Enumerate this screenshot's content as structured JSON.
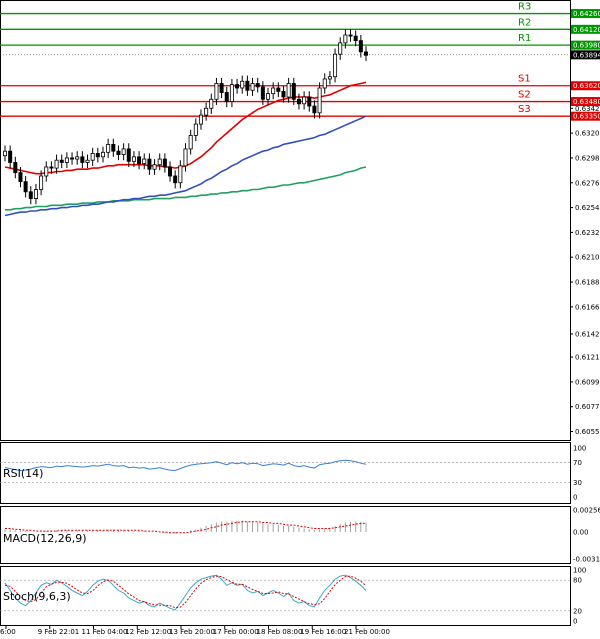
{
  "chart_data": [
    {
      "type": "candlestick",
      "panel": "price",
      "ylim": [
        0.6048,
        0.6438
      ],
      "y_ticks": [
        "0.64260",
        "0.64120",
        "0.63980",
        "0.63894",
        "0.63620",
        "0.63480",
        "0.63420",
        "0.63350",
        "0.63200",
        "0.62980",
        "0.62760",
        "0.62540",
        "0.62320",
        "0.62100",
        "0.61880",
        "0.61660",
        "0.61420",
        "0.61215",
        "0.60995",
        "0.60775",
        "0.60555"
      ],
      "x_ticks": [
        "6:00",
        "9 Feb 22:01",
        "11 Feb 04:00",
        "12 Feb 12:00",
        "13 Feb 20:00",
        "17 Feb 00:00",
        "18 Feb 08:00",
        "19 Feb 16:00",
        "21 Feb 00:00"
      ],
      "levels": [
        {
          "name": "R3",
          "value": 0.6426,
          "color": "#009600"
        },
        {
          "name": "R2",
          "value": 0.6412,
          "color": "#009600"
        },
        {
          "name": "R1",
          "value": 0.6398,
          "color": "#009600"
        },
        {
          "name": "S1",
          "value": 0.6362,
          "color": "#e00000"
        },
        {
          "name": "S2",
          "value": 0.6348,
          "color": "#e00000"
        },
        {
          "name": "S3",
          "value": 0.6335,
          "color": "#e00000"
        }
      ],
      "current_price": 0.63894,
      "closes": [
        0.6304,
        0.6294,
        0.6285,
        0.6277,
        0.6268,
        0.6262,
        0.627,
        0.6282,
        0.629,
        0.6289,
        0.6296,
        0.6294,
        0.6298,
        0.6297,
        0.6299,
        0.6294,
        0.6296,
        0.6302,
        0.6299,
        0.6303,
        0.631,
        0.6304,
        0.6301,
        0.6306,
        0.6295,
        0.6299,
        0.6293,
        0.6297,
        0.6288,
        0.6292,
        0.6297,
        0.629,
        0.6282,
        0.6276,
        0.6291,
        0.6306,
        0.6318,
        0.6328,
        0.6336,
        0.6342,
        0.635,
        0.6364,
        0.6356,
        0.6348,
        0.6363,
        0.636,
        0.6366,
        0.6358,
        0.6364,
        0.6361,
        0.635,
        0.6355,
        0.636,
        0.6357,
        0.6352,
        0.6364,
        0.635,
        0.6346,
        0.6352,
        0.6344,
        0.6338,
        0.636,
        0.6368,
        0.637,
        0.639,
        0.64,
        0.6407,
        0.6406,
        0.6402,
        0.6392,
        0.6389
      ],
      "ma_fast": {
        "color": "#e00000",
        "values": [
          0.629,
          0.6289,
          0.6288,
          0.6287,
          0.6286,
          0.6285,
          0.6284,
          0.6284,
          0.6285,
          0.6285,
          0.6286,
          0.6286,
          0.6287,
          0.6287,
          0.6288,
          0.6288,
          0.6288,
          0.6289,
          0.6289,
          0.629,
          0.6291,
          0.6291,
          0.6292,
          0.6292,
          0.6292,
          0.6292,
          0.6292,
          0.6292,
          0.6291,
          0.6291,
          0.6291,
          0.629,
          0.629,
          0.6289,
          0.629,
          0.6291,
          0.6293,
          0.6296,
          0.6299,
          0.6303,
          0.6307,
          0.6312,
          0.6316,
          0.632,
          0.6324,
          0.6328,
          0.6332,
          0.6335,
          0.6338,
          0.6341,
          0.6343,
          0.6345,
          0.6347,
          0.6349,
          0.635,
          0.6351,
          0.6352,
          0.6352,
          0.6352,
          0.6352,
          0.6351,
          0.6352,
          0.6353,
          0.6354,
          0.6356,
          0.6358,
          0.636,
          0.6362,
          0.6363,
          0.6364,
          0.6365
        ]
      },
      "ma_mid": {
        "color": "#3050c0",
        "values": [
          0.6247,
          0.6248,
          0.6249,
          0.625,
          0.625,
          0.6251,
          0.6251,
          0.6252,
          0.6252,
          0.6253,
          0.6253,
          0.6254,
          0.6254,
          0.6255,
          0.6255,
          0.6256,
          0.6256,
          0.6257,
          0.6257,
          0.6258,
          0.6259,
          0.6259,
          0.626,
          0.6261,
          0.6261,
          0.6262,
          0.6262,
          0.6263,
          0.6264,
          0.6264,
          0.6265,
          0.6265,
          0.6266,
          0.6267,
          0.6268,
          0.6269,
          0.6271,
          0.6273,
          0.6275,
          0.6278,
          0.628,
          0.6283,
          0.6286,
          0.6288,
          0.6291,
          0.6293,
          0.6296,
          0.6298,
          0.63,
          0.6302,
          0.6304,
          0.6305,
          0.6307,
          0.6308,
          0.631,
          0.6311,
          0.6312,
          0.6313,
          0.6314,
          0.6315,
          0.6316,
          0.6318,
          0.6319,
          0.6321,
          0.6323,
          0.6325,
          0.6327,
          0.6329,
          0.6331,
          0.6333,
          0.6335
        ]
      },
      "ma_slow": {
        "color": "#20a060",
        "values": [
          0.6252,
          0.6252,
          0.6253,
          0.6253,
          0.6254,
          0.6254,
          0.6255,
          0.6255,
          0.6255,
          0.6256,
          0.6256,
          0.6256,
          0.6257,
          0.6257,
          0.6257,
          0.6258,
          0.6258,
          0.6258,
          0.6259,
          0.6259,
          0.6259,
          0.626,
          0.626,
          0.626,
          0.626,
          0.6261,
          0.6261,
          0.6261,
          0.6261,
          0.6262,
          0.6262,
          0.6262,
          0.6262,
          0.6263,
          0.6263,
          0.6263,
          0.6264,
          0.6264,
          0.6265,
          0.6265,
          0.6266,
          0.6266,
          0.6267,
          0.6267,
          0.6268,
          0.6268,
          0.6269,
          0.6269,
          0.627,
          0.627,
          0.6271,
          0.6272,
          0.6272,
          0.6273,
          0.6274,
          0.6274,
          0.6275,
          0.6276,
          0.6276,
          0.6277,
          0.6278,
          0.6279,
          0.628,
          0.6281,
          0.6282,
          0.6283,
          0.6285,
          0.6286,
          0.6287,
          0.6289,
          0.629
        ]
      }
    },
    {
      "type": "line",
      "panel": "rsi",
      "title": "RSI(14)",
      "ylim": [
        0,
        100
      ],
      "y_ticks": [
        "100",
        "70",
        "30",
        "0"
      ],
      "color": "#3a7ed8",
      "values": [
        60,
        58,
        56,
        54,
        55,
        57,
        60,
        62,
        61,
        60,
        63,
        62,
        64,
        63,
        62,
        61,
        62,
        64,
        63,
        65,
        67,
        64,
        63,
        64,
        60,
        61,
        59,
        60,
        57,
        58,
        60,
        57,
        55,
        54,
        58,
        62,
        65,
        67,
        68,
        69,
        70,
        72,
        69,
        66,
        70,
        68,
        70,
        67,
        69,
        68,
        64,
        66,
        68,
        67,
        65,
        69,
        64,
        62,
        64,
        61,
        59,
        66,
        68,
        69,
        72,
        74,
        75,
        74,
        72,
        69,
        67
      ]
    },
    {
      "type": "bar",
      "panel": "macd",
      "title": "MACD(12,26,9)",
      "ylim": [
        -0.00315,
        0.00256
      ],
      "y_ticks": [
        "0.002563",
        "0.00",
        "-0.00313"
      ],
      "histogram": [
        0.0003,
        0.0003,
        0.0002,
        0.0002,
        0.0001,
        0.0,
        0.0,
        0.0001,
        0.0001,
        0.0001,
        0.0002,
        0.0002,
        0.0002,
        0.0002,
        0.0002,
        0.0002,
        0.0002,
        0.0002,
        0.0002,
        0.0002,
        0.0003,
        0.0003,
        0.0002,
        0.0002,
        0.0002,
        0.0001,
        0.0001,
        0.0001,
        0.0,
        0.0,
        0.0,
        -0.0001,
        -0.0001,
        -0.0002,
        -0.0001,
        0.0,
        0.0002,
        0.0003,
        0.0005,
        0.0007,
        0.0009,
        0.0011,
        0.0012,
        0.0012,
        0.0013,
        0.0013,
        0.0013,
        0.0012,
        0.0012,
        0.0011,
        0.001,
        0.0009,
        0.0009,
        0.0008,
        0.0007,
        0.0007,
        0.0006,
        0.0005,
        0.0004,
        0.0003,
        0.0002,
        0.0003,
        0.0004,
        0.0005,
        0.0007,
        0.0009,
        0.0011,
        0.0012,
        0.0012,
        0.0012,
        0.0011
      ],
      "signal": {
        "color": "#e00000",
        "values": [
          0.0004,
          0.0004,
          0.0003,
          0.0003,
          0.0002,
          0.0002,
          0.0001,
          0.0001,
          0.0001,
          0.0001,
          0.0001,
          0.0002,
          0.0002,
          0.0002,
          0.0002,
          0.0002,
          0.0002,
          0.0002,
          0.0002,
          0.0002,
          0.0002,
          0.0002,
          0.0002,
          0.0002,
          0.0002,
          0.0002,
          0.0002,
          0.0001,
          0.0001,
          0.0001,
          0.0,
          0.0,
          -0.0001,
          -0.0001,
          -0.0001,
          -0.0001,
          0.0,
          0.0001,
          0.0002,
          0.0003,
          0.0005,
          0.0006,
          0.0008,
          0.0009,
          0.001,
          0.0011,
          0.0012,
          0.0012,
          0.0012,
          0.0012,
          0.0011,
          0.0011,
          0.001,
          0.001,
          0.0009,
          0.0008,
          0.0008,
          0.0007,
          0.0006,
          0.0005,
          0.0004,
          0.0004,
          0.0004,
          0.0004,
          0.0005,
          0.0006,
          0.0007,
          0.0008,
          0.0009,
          0.001,
          0.001
        ]
      }
    },
    {
      "type": "line",
      "panel": "stoch",
      "title": "Stoch(9,6,3)",
      "ylim": [
        0,
        100
      ],
      "y_ticks": [
        "100",
        "80",
        "20",
        "0"
      ],
      "main": {
        "color": "#3aa8c8",
        "values": [
          75,
          60,
          45,
          35,
          30,
          40,
          55,
          70,
          75,
          72,
          80,
          75,
          68,
          60,
          55,
          50,
          58,
          70,
          78,
          82,
          80,
          70,
          60,
          55,
          45,
          40,
          35,
          38,
          30,
          28,
          35,
          30,
          25,
          22,
          35,
          50,
          65,
          75,
          82,
          85,
          88,
          90,
          82,
          70,
          75,
          70,
          72,
          60,
          55,
          58,
          50,
          55,
          60,
          55,
          48,
          55,
          40,
          35,
          38,
          30,
          28,
          45,
          60,
          70,
          82,
          88,
          90,
          85,
          78,
          70,
          60
        ]
      },
      "signal": {
        "color": "#e00000",
        "values": [
          70,
          68,
          58,
          48,
          40,
          38,
          42,
          55,
          67,
          72,
          76,
          76,
          74,
          68,
          61,
          55,
          54,
          59,
          69,
          77,
          80,
          78,
          70,
          62,
          53,
          47,
          40,
          38,
          34,
          32,
          31,
          31,
          30,
          26,
          27,
          36,
          50,
          63,
          74,
          81,
          85,
          88,
          87,
          81,
          76,
          72,
          72,
          67,
          62,
          58,
          54,
          54,
          55,
          57,
          54,
          53,
          48,
          43,
          38,
          34,
          32,
          34,
          44,
          58,
          71,
          80,
          87,
          88,
          84,
          78,
          69
        ]
      }
    }
  ]
}
